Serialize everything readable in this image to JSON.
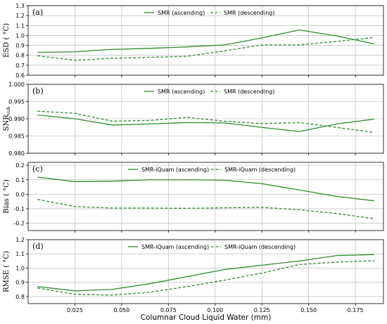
{
  "chart_data": [
    {
      "type": "line",
      "panel_label": "(a)",
      "ylabel": "ESD ( °C)",
      "ylim": [
        0.6,
        1.3
      ],
      "yticks": [
        "0.6",
        "0.7",
        "0.8",
        "0.9",
        "1.0",
        "1.1",
        "1.2",
        "1.3"
      ],
      "xlim": [
        0.0,
        0.19
      ],
      "grid": true,
      "legend": "top-center",
      "x": [
        0.005,
        0.025,
        0.045,
        0.065,
        0.085,
        0.105,
        0.125,
        0.145,
        0.165,
        0.185
      ],
      "series": [
        {
          "name": "SMR (ascending)",
          "style": "solid",
          "values": [
            0.83,
            0.835,
            0.86,
            0.87,
            0.885,
            0.905,
            0.975,
            1.055,
            0.995,
            0.915
          ]
        },
        {
          "name": "SMR (descending)",
          "style": "dashed",
          "values": [
            0.795,
            0.75,
            0.77,
            0.78,
            0.79,
            0.845,
            0.905,
            0.905,
            0.94,
            0.98
          ]
        }
      ]
    },
    {
      "type": "line",
      "panel_label": "(b)",
      "ylabel": "SNR",
      "ylabel_sub": "sub",
      "ylim": [
        0.98,
        1.0
      ],
      "yticks": [
        "0.980",
        "0.985",
        "0.990",
        "0.995",
        "1.000"
      ],
      "xlim": [
        0.0,
        0.19
      ],
      "grid": true,
      "legend": "top-center",
      "x": [
        0.005,
        0.025,
        0.045,
        0.065,
        0.085,
        0.105,
        0.125,
        0.145,
        0.165,
        0.185
      ],
      "series": [
        {
          "name": "SMR (ascending)",
          "style": "solid",
          "values": [
            0.9911,
            0.99,
            0.9882,
            0.9885,
            0.9889,
            0.9888,
            0.9875,
            0.9863,
            0.9885,
            0.9899
          ]
        },
        {
          "name": "SMR (descending)",
          "style": "dashed",
          "values": [
            0.9922,
            0.9916,
            0.9893,
            0.9895,
            0.9904,
            0.9893,
            0.9886,
            0.9889,
            0.9875,
            0.986
          ]
        }
      ]
    },
    {
      "type": "line",
      "panel_label": "(c)",
      "ylabel": "Bias ( °C)",
      "ylim": [
        -0.25,
        0.22
      ],
      "yticks": [
        "-0.2",
        "-0.1",
        "0.0",
        "0.1",
        "0.2"
      ],
      "xlim": [
        0.0,
        0.19
      ],
      "grid": true,
      "legend": "top-center",
      "x": [
        0.005,
        0.025,
        0.045,
        0.065,
        0.085,
        0.105,
        0.125,
        0.145,
        0.165,
        0.185
      ],
      "series": [
        {
          "name": "SMR-iQuam (ascending)",
          "style": "solid",
          "values": [
            0.118,
            0.087,
            0.09,
            0.1,
            0.1,
            0.097,
            0.073,
            0.03,
            -0.015,
            -0.045
          ]
        },
        {
          "name": "SMR-iQuam (descending)",
          "style": "dashed",
          "values": [
            -0.035,
            -0.085,
            -0.095,
            -0.095,
            -0.097,
            -0.093,
            -0.09,
            -0.107,
            -0.133,
            -0.168
          ]
        }
      ]
    },
    {
      "type": "line",
      "panel_label": "(d)",
      "ylabel": "RMSE ( °C)",
      "ylim": [
        0.75,
        1.2
      ],
      "yticks": [
        "0.8",
        "0.9",
        "1.0",
        "1.1",
        "1.2"
      ],
      "xlim": [
        0.0,
        0.19
      ],
      "xlabel": "Columnar Cloud Liquid Water (mm)",
      "xticks": [
        "0.025",
        "0.050",
        "0.075",
        "0.100",
        "0.125",
        "0.150",
        "0.175"
      ],
      "grid": true,
      "legend": "top-center",
      "x": [
        0.005,
        0.025,
        0.045,
        0.065,
        0.085,
        0.105,
        0.125,
        0.145,
        0.165,
        0.185
      ],
      "series": [
        {
          "name": "SMR-iQuam (ascending)",
          "style": "solid",
          "values": [
            0.87,
            0.84,
            0.85,
            0.89,
            0.94,
            0.99,
            1.02,
            1.05,
            1.088,
            1.095
          ]
        },
        {
          "name": "SMR-iQuam (descending)",
          "style": "dashed",
          "values": [
            0.86,
            0.815,
            0.81,
            0.83,
            0.87,
            0.915,
            0.965,
            1.025,
            1.042,
            1.052
          ]
        }
      ]
    }
  ],
  "colors": {
    "line": "#2e8b2e",
    "grid": "#b0b0b0",
    "frame": "#000000"
  }
}
